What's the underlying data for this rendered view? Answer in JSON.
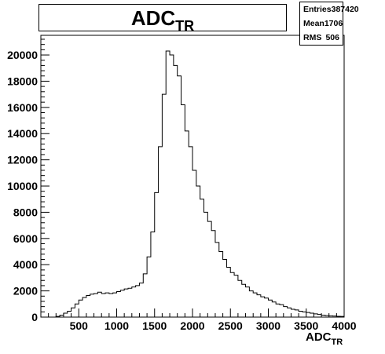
{
  "title": {
    "main": "ADC",
    "subscript": "TR"
  },
  "stats": [
    {
      "label": "Entries",
      "value": "387420"
    },
    {
      "label": "Mean",
      "value": "1706"
    },
    {
      "label": "RMS",
      "value": "506"
    }
  ],
  "xaxis": {
    "main": "ADC",
    "subscript": "TR"
  },
  "chart_data": {
    "type": "histogram",
    "title": "ADC_TR",
    "xlabel": "ADC_TR",
    "ylabel": "",
    "xlim": [
      0,
      4000
    ],
    "ylim": [
      0,
      21500
    ],
    "xticks": [
      500,
      1000,
      1500,
      2000,
      2500,
      3000,
      3500,
      4000
    ],
    "yticks": [
      0,
      2000,
      4000,
      6000,
      8000,
      10000,
      12000,
      14000,
      16000,
      18000,
      20000
    ],
    "grid": false,
    "bin_width": 50,
    "bins_start": 0,
    "values": [
      0,
      0,
      0,
      0,
      50,
      150,
      300,
      450,
      700,
      1000,
      1300,
      1500,
      1650,
      1750,
      1800,
      1900,
      1800,
      1850,
      1800,
      1850,
      1950,
      2050,
      2150,
      2200,
      2300,
      2400,
      2600,
      3300,
      4600,
      6500,
      9500,
      13000,
      17000,
      20300,
      20000,
      19200,
      18400,
      16200,
      14200,
      13000,
      11200,
      10000,
      9000,
      8000,
      7300,
      6600,
      5700,
      5000,
      4400,
      3800,
      3400,
      3200,
      2800,
      2500,
      2300,
      2000,
      1850,
      1700,
      1550,
      1450,
      1300,
      1150,
      1000,
      950,
      800,
      700,
      600,
      550,
      450,
      400,
      350,
      300,
      250,
      200,
      150,
      120,
      100,
      80,
      60,
      50
    ]
  }
}
